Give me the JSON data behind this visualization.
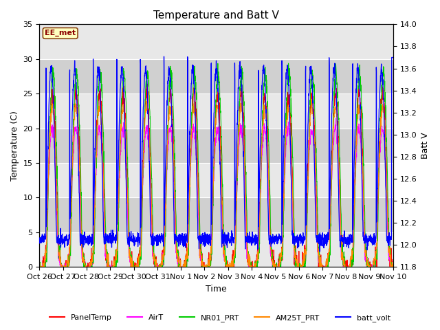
{
  "title": "Temperature and Batt V",
  "xlabel": "Time",
  "ylabel_left": "Temperature (C)",
  "ylabel_right": "Batt V",
  "annotation": "EE_met",
  "ylim_left": [
    0,
    35
  ],
  "ylim_right": [
    11.8,
    14.0
  ],
  "x_tick_labels": [
    "Oct 26",
    "Oct 27",
    "Oct 28",
    "Oct 29",
    "Oct 30",
    "Oct 31",
    "Nov 1",
    "Nov 2",
    "Nov 3",
    "Nov 4",
    "Nov 5",
    "Nov 6",
    "Nov 7",
    "Nov 8",
    "Nov 9",
    "Nov 10"
  ],
  "legend_entries": [
    "PanelTemp",
    "AirT",
    "NR01_PRT",
    "AM25T_PRT",
    "batt_volt"
  ],
  "legend_colors": [
    "#ff0000",
    "#ff00ff",
    "#00cc00",
    "#ff8800",
    "#0000ff"
  ],
  "plot_bg_color": "#d8d8d8",
  "grid_color": "#ffffff",
  "num_days": 15,
  "samples_per_day": 144,
  "seed": 7
}
